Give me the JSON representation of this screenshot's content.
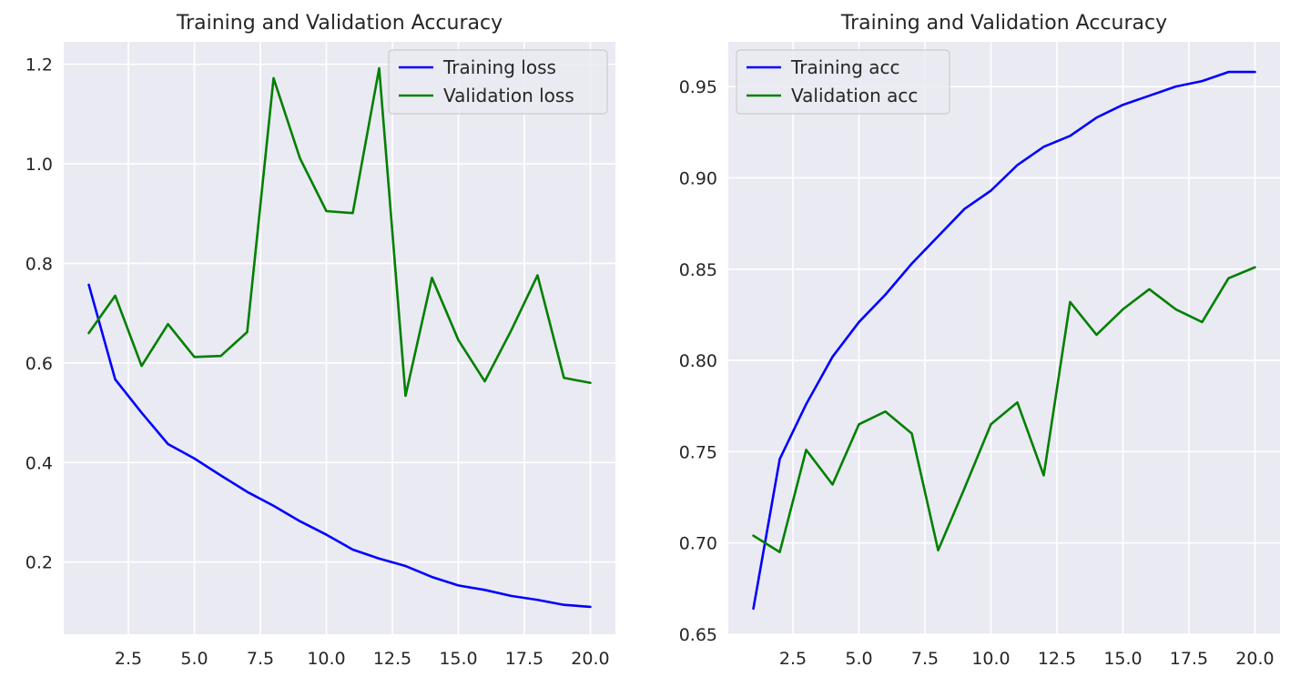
{
  "chart_data": [
    {
      "type": "line",
      "title": "Training and Validation Accuracy",
      "xlabel": "",
      "ylabel": "",
      "xlim": [
        0.05,
        20.95
      ],
      "ylim": [
        0.055,
        1.245
      ],
      "xticks": [
        2.5,
        5.0,
        7.5,
        10.0,
        12.5,
        15.0,
        17.5,
        20.0
      ],
      "xtick_labels": [
        "2.5",
        "5.0",
        "7.5",
        "10.0",
        "12.5",
        "15.0",
        "17.5",
        "20.0"
      ],
      "yticks": [
        0.2,
        0.4,
        0.6,
        0.8,
        1.0,
        1.2
      ],
      "ytick_labels": [
        "0.2",
        "0.4",
        "0.6",
        "0.8",
        "1.0",
        "1.2"
      ],
      "grid": true,
      "legend_position": "top-right",
      "x": [
        1,
        2,
        3,
        4,
        5,
        6,
        7,
        8,
        9,
        10,
        11,
        12,
        13,
        14,
        15,
        16,
        17,
        18,
        19,
        20
      ],
      "series": [
        {
          "name": "Training loss",
          "color": "#0000ff",
          "values": [
            0.757,
            0.567,
            0.5,
            0.437,
            0.408,
            0.374,
            0.341,
            0.313,
            0.282,
            0.255,
            0.225,
            0.207,
            0.192,
            0.17,
            0.153,
            0.144,
            0.132,
            0.124,
            0.114,
            0.11
          ]
        },
        {
          "name": "Validation loss",
          "color": "#008000",
          "values": [
            0.66,
            0.735,
            0.594,
            0.678,
            0.612,
            0.614,
            0.662,
            1.172,
            1.011,
            0.905,
            0.901,
            1.192,
            0.534,
            0.771,
            0.646,
            0.563,
            0.665,
            0.776,
            0.57,
            0.56
          ]
        }
      ]
    },
    {
      "type": "line",
      "title": "Training and Validation Accuracy",
      "xlabel": "",
      "ylabel": "",
      "xlim": [
        0.05,
        20.95
      ],
      "ylim": [
        0.65,
        0.9745
      ],
      "xticks": [
        2.5,
        5.0,
        7.5,
        10.0,
        12.5,
        15.0,
        17.5,
        20.0
      ],
      "xtick_labels": [
        "2.5",
        "5.0",
        "7.5",
        "10.0",
        "12.5",
        "15.0",
        "17.5",
        "20.0"
      ],
      "yticks": [
        0.65,
        0.7,
        0.75,
        0.8,
        0.85,
        0.9,
        0.95
      ],
      "ytick_labels": [
        "0.65",
        "0.70",
        "0.75",
        "0.80",
        "0.85",
        "0.90",
        "0.95"
      ],
      "grid": true,
      "legend_position": "top-left",
      "x": [
        1,
        2,
        3,
        4,
        5,
        6,
        7,
        8,
        9,
        10,
        11,
        12,
        13,
        14,
        15,
        16,
        17,
        18,
        19,
        20
      ],
      "series": [
        {
          "name": "Training acc",
          "color": "#0000ff",
          "values": [
            0.664,
            0.746,
            0.776,
            0.802,
            0.821,
            0.836,
            0.853,
            0.868,
            0.883,
            0.893,
            0.907,
            0.917,
            0.923,
            0.933,
            0.94,
            0.945,
            0.95,
            0.953,
            0.958,
            0.958
          ]
        },
        {
          "name": "Validation acc",
          "color": "#008000",
          "values": [
            0.704,
            0.695,
            0.751,
            0.732,
            0.765,
            0.772,
            0.76,
            0.696,
            0.73,
            0.765,
            0.777,
            0.737,
            0.832,
            0.814,
            0.828,
            0.839,
            0.828,
            0.821,
            0.845,
            0.851
          ]
        }
      ]
    }
  ]
}
